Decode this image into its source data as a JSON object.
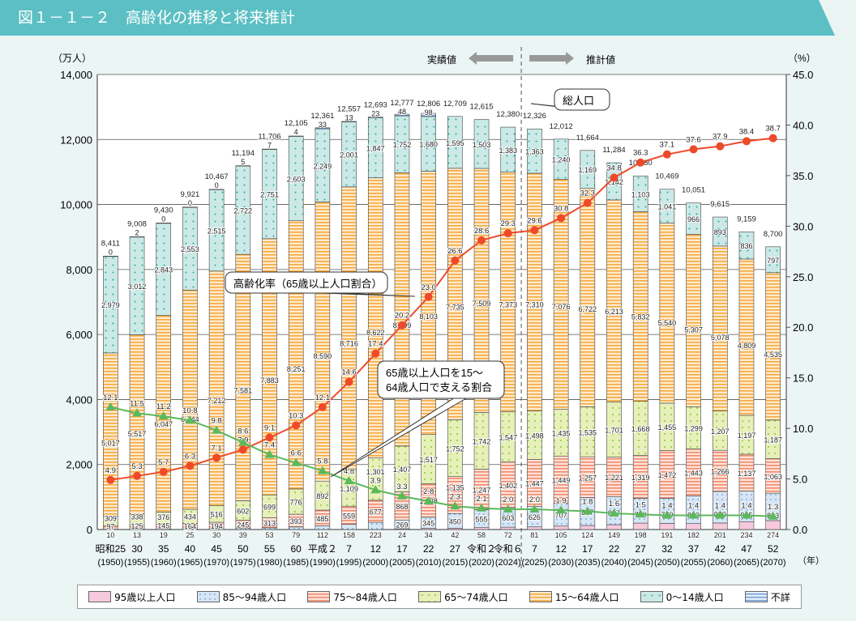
{
  "title": "図１－１－２　高齢化の推移と将来推計",
  "chart_data": {
    "type": "bar",
    "stacked": true,
    "left_unit": "（万人）",
    "right_unit": "（%）",
    "x_unit": "（年）",
    "ylim": [
      0,
      14000
    ],
    "y2lim": [
      0,
      45
    ],
    "yticks": [
      "0",
      "2,000",
      "4,000",
      "6,000",
      "8,000",
      "10,000",
      "12,000",
      "14,000"
    ],
    "y2ticks": [
      "0.0",
      "5.0",
      "10.0",
      "15.0",
      "20.0",
      "25.0",
      "30.0",
      "35.0",
      "40.0",
      "45.0"
    ],
    "actual_label": "実績値",
    "projection_label": "推計値",
    "categories": [
      [
        "昭和25",
        "(1950)"
      ],
      [
        "30",
        "(1955)"
      ],
      [
        "35",
        "(1960)"
      ],
      [
        "40",
        "(1965)"
      ],
      [
        "45",
        "(1970)"
      ],
      [
        "50",
        "(1975)"
      ],
      [
        "55",
        "(1980)"
      ],
      [
        "60",
        "(1985)"
      ],
      [
        "平成２",
        "(1990)"
      ],
      [
        "7",
        "(1995)"
      ],
      [
        "12",
        "(2000)"
      ],
      [
        "17",
        "(2005)"
      ],
      [
        "22",
        "(2010)"
      ],
      [
        "27",
        "(2015)"
      ],
      [
        "令和２",
        "(2020)"
      ],
      [
        "令和６",
        "(2024)"
      ],
      [
        "7",
        "(2025)"
      ],
      [
        "12",
        "(2030)"
      ],
      [
        "17",
        "(2035)"
      ],
      [
        "22",
        "(2040)"
      ],
      [
        "27",
        "(2045)"
      ],
      [
        "32",
        "(2050)"
      ],
      [
        "37",
        "(2055)"
      ],
      [
        "42",
        "(2060)"
      ],
      [
        "47",
        "(2065)"
      ],
      [
        "52",
        "(2070)"
      ]
    ],
    "series": [
      {
        "name": "95歳以上人口",
        "color": "#f6c9dc",
        "values": [
          null,
          null,
          null,
          null,
          null,
          null,
          null,
          null,
          null,
          null,
          null,
          24,
          34,
          42,
          58,
          72,
          81,
          105,
          124,
          149,
          198,
          191,
          182,
          201,
          234,
          274
        ]
      },
      {
        "name": "85～94歳人口",
        "color": "#cfe1f2",
        "values": [
          10,
          13,
          19,
          25,
          30,
          39,
          53,
          79,
          112,
          158,
          223,
          269,
          345,
          450,
          555,
          603,
          626,
          707,
          857,
          857,
          760,
          770,
          853,
          970,
          945,
          843
        ]
      },
      {
        "name": "75～84歳人口",
        "color": "#f7b9a5",
        "values": [
          97,
          125,
          145,
          164,
          194,
          245,
          313,
          393,
          485,
          559,
          677,
          868,
          1028,
          1135,
          1247,
          1402,
          1447,
          1449,
          1257,
          1221,
          1319,
          1472,
          1443,
          1266,
          1137,
          1063
        ]
      },
      {
        "name": "65～74歳人口",
        "color": "#e2eeb0",
        "values": [
          309,
          338,
          376,
          434,
          516,
          602,
          699,
          776,
          892,
          1109,
          1301,
          1407,
          1517,
          1752,
          1742,
          1547,
          1498,
          1435,
          1535,
          1701,
          1668,
          1455,
          1299,
          1207,
          1197,
          1187
        ]
      },
      {
        "name": "15～64歳人口",
        "color": "#fcd9a6",
        "values": [
          5017,
          5517,
          6047,
          6744,
          7212,
          7581,
          7883,
          8251,
          8590,
          8716,
          8622,
          8409,
          8103,
          7735,
          7509,
          7373,
          7310,
          7076,
          6722,
          6213,
          5832,
          5540,
          5307,
          5078,
          4809,
          4535
        ]
      },
      {
        "name": "0～14歳人口",
        "color": "#c8e7e4",
        "values": [
          2979,
          3012,
          2843,
          2553,
          2515,
          2722,
          2751,
          2603,
          2249,
          2001,
          1847,
          1752,
          1680,
          1595,
          1503,
          1383,
          1363,
          1240,
          1169,
          1142,
          1103,
          1041,
          966,
          893,
          836,
          797
        ]
      },
      {
        "name": "不詳",
        "color": "#c9dcf2",
        "values": [
          0,
          2,
          0,
          0,
          0,
          5,
          7,
          4,
          33,
          13,
          23,
          48,
          98,
          null,
          null,
          null,
          null,
          null,
          null,
          null,
          null,
          null,
          null,
          null,
          null,
          null
        ]
      }
    ],
    "totals": [
      "8,411",
      "9,008",
      "9,430",
      "9,921",
      "10,467",
      "11,194",
      "11,706",
      "12,105",
      "12,361",
      "12,557",
      "12,693",
      "12,777",
      "12,806",
      "12,709",
      "12,615",
      "12,380",
      "12,326",
      "12,012",
      "11,664",
      "11,284",
      "10,880",
      "10,469",
      "10,051",
      "9,615",
      "9,159",
      "8,700"
    ],
    "lines": [
      {
        "name": "高齢化率（65歳以上人口割合）",
        "color": "#ee4a2a",
        "marker": "circle",
        "axis": "right",
        "values": [
          4.9,
          5.3,
          5.7,
          6.3,
          7.1,
          7.9,
          9.1,
          10.3,
          12.1,
          14.6,
          17.4,
          20.2,
          23.0,
          26.6,
          28.6,
          29.3,
          29.6,
          30.8,
          32.3,
          34.8,
          36.3,
          37.1,
          37.6,
          37.9,
          38.4,
          38.7
        ]
      },
      {
        "name": "65歳以上人口を15～64歳人口で支える割合",
        "color": "#5cb85c",
        "marker": "triangle",
        "axis": "right",
        "values": [
          12.1,
          11.5,
          11.2,
          10.8,
          9.8,
          8.6,
          7.4,
          6.6,
          5.8,
          4.8,
          3.9,
          3.3,
          2.8,
          2.3,
          2.1,
          2.0,
          2.0,
          1.9,
          1.8,
          1.6,
          1.5,
          1.4,
          1.4,
          1.4,
          1.4,
          1.3
        ]
      }
    ],
    "annotations": {
      "total": "総人口",
      "aging": "高齢化率（65歳以上人口割合）",
      "support1": "65歳以上人口を15～",
      "support2": "64歳人口で支える割合"
    },
    "projection_start_index": 16,
    "legend_placement": "bottom",
    "grid": true
  }
}
